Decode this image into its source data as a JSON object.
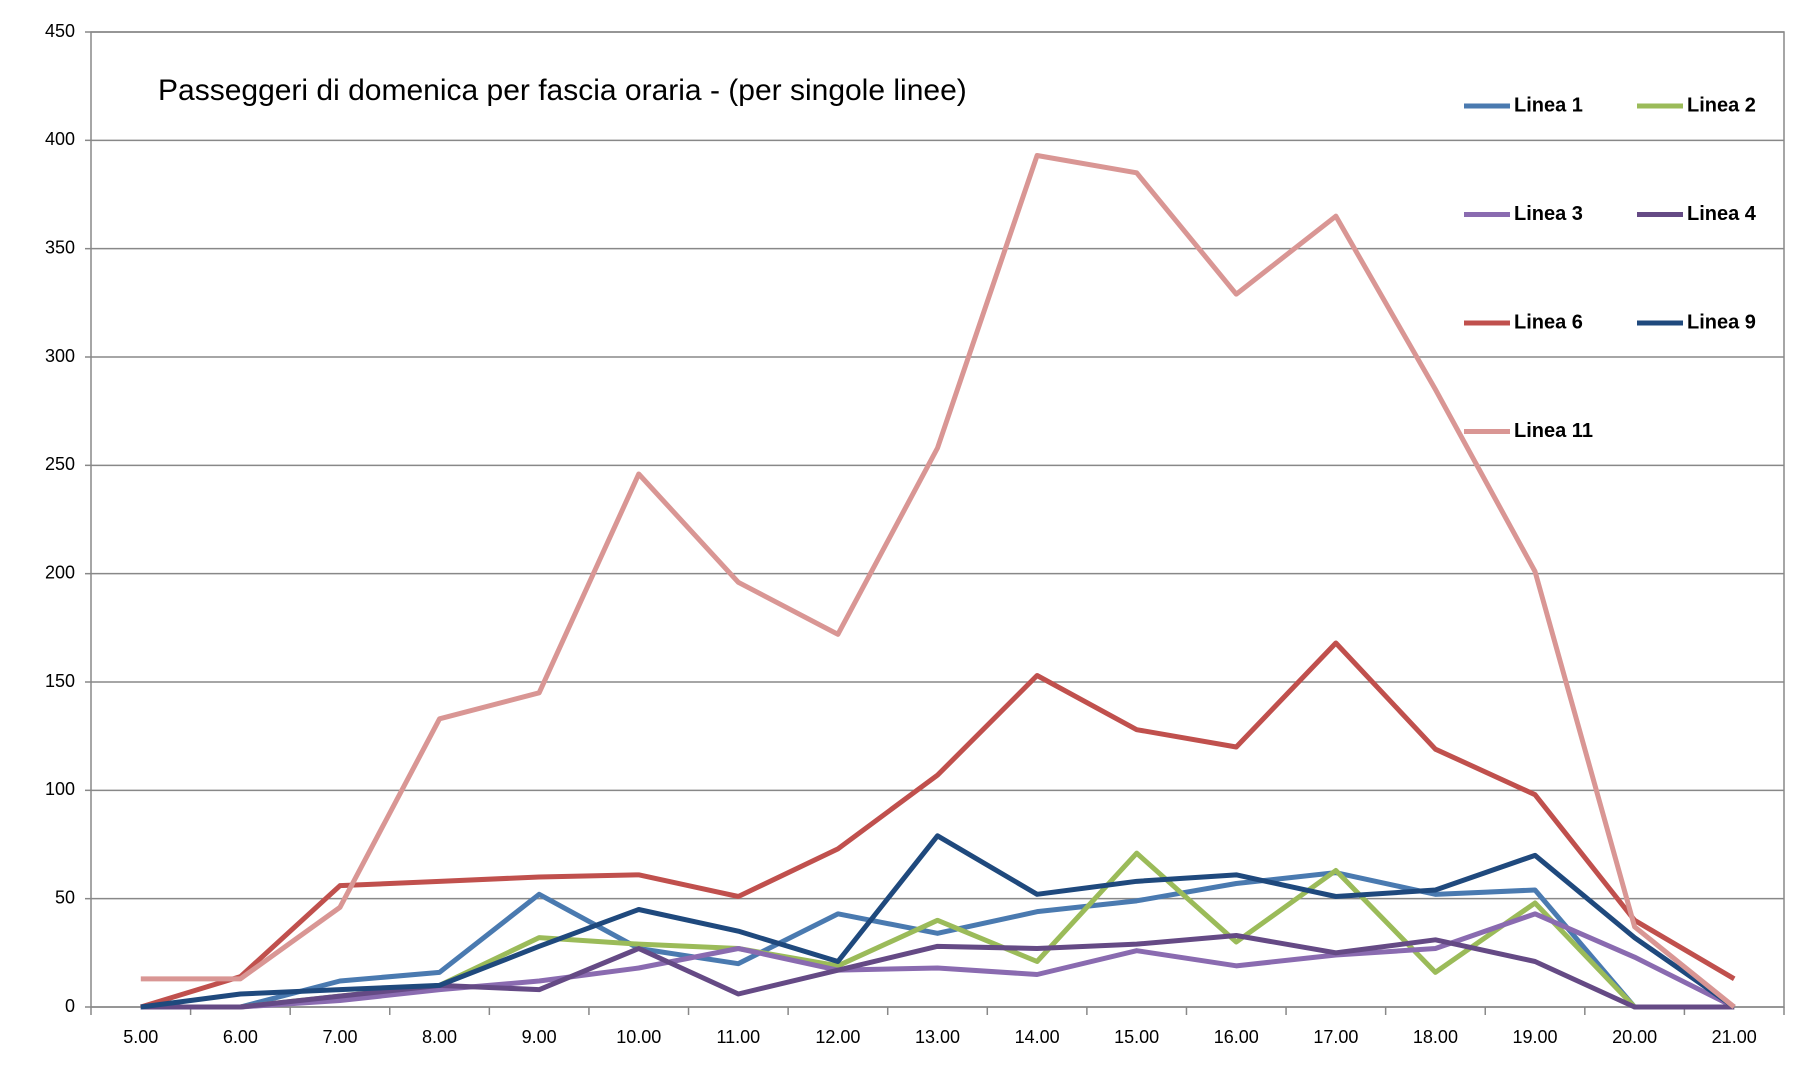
{
  "chart_data": {
    "type": "line",
    "title": "Passeggeri di domenica per fascia oraria - (per singole linee)",
    "categories": [
      "5.00",
      "6.00",
      "7.00",
      "8.00",
      "9.00",
      "10.00",
      "11.00",
      "12.00",
      "13.00",
      "14.00",
      "15.00",
      "16.00",
      "17.00",
      "18.00",
      "19.00",
      "20.00",
      "21.00"
    ],
    "series": [
      {
        "name": "Linea 1",
        "color": "#4a7ab0",
        "values": [
          0,
          0,
          12,
          16,
          52,
          27,
          20,
          43,
          34,
          44,
          49,
          57,
          62,
          52,
          54,
          0,
          0
        ]
      },
      {
        "name": "Linea 2",
        "color": "#9bbb59",
        "values": [
          0,
          0,
          5,
          10,
          32,
          29,
          27,
          19,
          40,
          21,
          71,
          30,
          63,
          16,
          48,
          0,
          0
        ]
      },
      {
        "name": "Linea 3",
        "color": "#8a6bb0",
        "values": [
          0,
          0,
          3,
          8,
          12,
          18,
          27,
          17,
          18,
          15,
          26,
          19,
          24,
          27,
          43,
          23,
          0
        ]
      },
      {
        "name": "Linea 4",
        "color": "#654a85",
        "values": [
          0,
          0,
          5,
          10,
          8,
          27,
          6,
          17,
          28,
          27,
          29,
          33,
          25,
          31,
          21,
          0,
          0
        ]
      },
      {
        "name": "Linea 6",
        "color": "#c0504d",
        "values": [
          0,
          14,
          56,
          58,
          60,
          61,
          51,
          73,
          107,
          153,
          128,
          120,
          168,
          119,
          98,
          40,
          13
        ]
      },
      {
        "name": "Linea 9",
        "color": "#1f497d",
        "values": [
          0,
          6,
          8,
          10,
          28,
          45,
          35,
          21,
          79,
          52,
          58,
          61,
          51,
          54,
          70,
          32,
          0
        ]
      },
      {
        "name": "Linea 11",
        "color": "#d99694",
        "values": [
          13,
          13,
          46,
          133,
          145,
          246,
          196,
          172,
          258,
          393,
          385,
          329,
          365,
          285,
          201,
          37,
          0
        ]
      }
    ],
    "ylim": [
      0,
      450
    ],
    "yticks": [
      0,
      50,
      100,
      150,
      200,
      250,
      300,
      350,
      400,
      450
    ],
    "grid": true,
    "legend": "top-right"
  }
}
